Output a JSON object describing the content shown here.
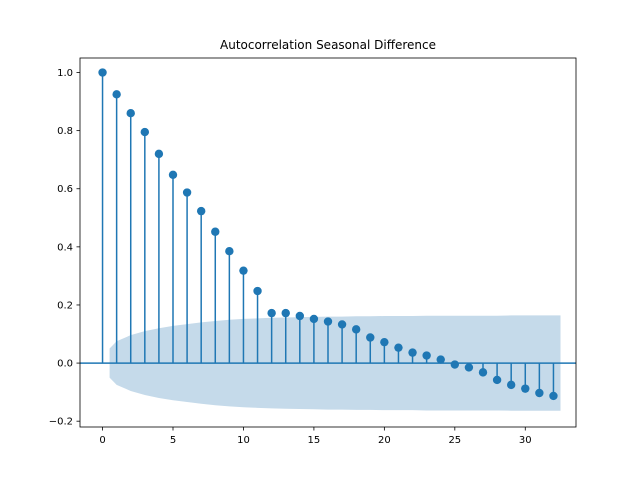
{
  "chart_data": {
    "type": "stem",
    "title": "Autocorrelation Seasonal Difference",
    "xlabel": "",
    "ylabel": "",
    "xlim": [
      -1.6,
      33.6
    ],
    "ylim": [
      -0.22,
      1.05
    ],
    "xticks": [
      0,
      5,
      10,
      15,
      20,
      25,
      30
    ],
    "yticks": [
      -0.2,
      0.0,
      0.2,
      0.4,
      0.6,
      0.8,
      1.0
    ],
    "grid": false,
    "colors": {
      "stem": "#1f77b4",
      "confidence_band": "#c5daea",
      "zero_line": "#1f77b4"
    },
    "lags": [
      0,
      1,
      2,
      3,
      4,
      5,
      6,
      7,
      8,
      9,
      10,
      11,
      12,
      13,
      14,
      15,
      16,
      17,
      18,
      19,
      20,
      21,
      22,
      23,
      24,
      25,
      26,
      27,
      28,
      29,
      30,
      31,
      32
    ],
    "acf": [
      1.0,
      0.925,
      0.86,
      0.795,
      0.72,
      0.648,
      0.587,
      0.523,
      0.452,
      0.385,
      0.318,
      0.248,
      0.172,
      0.172,
      0.162,
      0.152,
      0.143,
      0.133,
      0.116,
      0.088,
      0.072,
      0.053,
      0.036,
      0.026,
      0.012,
      -0.005,
      -0.015,
      -0.032,
      -0.058,
      -0.075,
      -0.088,
      -0.103,
      -0.113
    ],
    "confidence_band": {
      "lags": [
        0.5,
        1,
        2,
        3,
        4,
        5,
        6,
        7,
        8,
        9,
        10,
        11,
        12,
        13,
        14,
        15,
        16,
        17,
        18,
        19,
        20,
        21,
        22,
        23,
        24,
        25,
        26,
        27,
        28,
        29,
        30,
        31,
        32,
        32.5
      ],
      "upper": [
        0.05,
        0.075,
        0.096,
        0.11,
        0.12,
        0.128,
        0.134,
        0.14,
        0.145,
        0.149,
        0.152,
        0.154,
        0.156,
        0.157,
        0.158,
        0.159,
        0.16,
        0.16,
        0.161,
        0.161,
        0.162,
        0.162,
        0.162,
        0.163,
        0.163,
        0.163,
        0.163,
        0.163,
        0.163,
        0.164,
        0.164,
        0.164,
        0.164,
        0.164
      ]
    }
  }
}
